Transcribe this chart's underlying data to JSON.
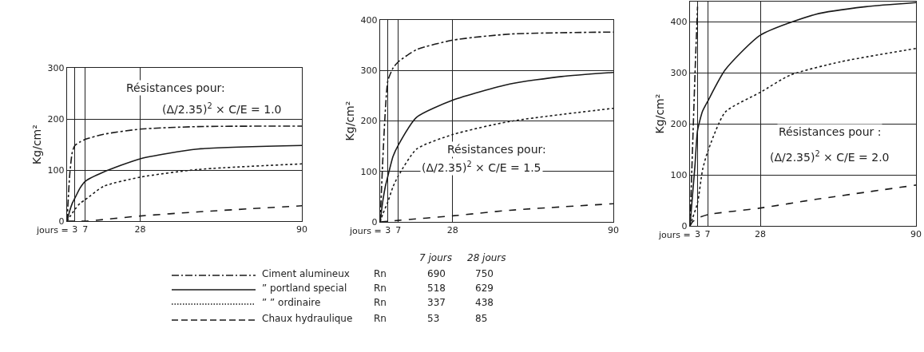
{
  "chart_data": [
    {
      "type": "line",
      "ylabel": "Kg/cm²",
      "xlabel": "jours =",
      "xlim": [
        0,
        90
      ],
      "xticks": [
        3,
        7,
        28,
        90
      ],
      "ylim": [
        0,
        300
      ],
      "yticks": [
        0,
        100,
        200,
        300
      ],
      "grid": true,
      "annotations": [
        "Résistances pour:",
        "(Δ/2.35)$^{2}$ × C/E = 1.0"
      ],
      "series": [
        {
          "color": "#1a1a1a",
          "line_style": "dashdot",
          "x": [
            0,
            1,
            2,
            3,
            5,
            7,
            14,
            28,
            50,
            90
          ],
          "values": [
            0,
            90,
            135,
            148,
            155,
            160,
            170,
            180,
            185,
            186
          ]
        },
        {
          "color": "#1a1a1a",
          "line_style": "solid",
          "x": [
            0,
            1,
            2,
            3,
            5,
            7,
            14,
            28,
            50,
            90
          ],
          "values": [
            0,
            20,
            35,
            45,
            65,
            78,
            96,
            122,
            141,
            148
          ]
        },
        {
          "color": "#1a1a1a",
          "line_style": "dotted",
          "x": [
            0,
            1,
            3,
            5,
            7,
            14,
            28,
            50,
            90
          ],
          "values": [
            0,
            8,
            23,
            35,
            42,
            68,
            86,
            101,
            112
          ]
        },
        {
          "color": "#1a1a1a",
          "line_style": "dashed",
          "x": [
            0,
            7,
            28,
            50,
            90
          ],
          "values": [
            0,
            0,
            10,
            18,
            30
          ]
        }
      ]
    },
    {
      "type": "line",
      "ylabel": "Kg/cm²",
      "xlabel": "jours =",
      "xlim": [
        0,
        90
      ],
      "xticks": [
        3,
        7,
        28,
        90
      ],
      "ylim": [
        0,
        400
      ],
      "yticks": [
        0,
        100,
        200,
        300,
        400
      ],
      "grid": true,
      "annotations": [
        "Résistances pour:",
        "(Δ/2.35)$^{2}$ × C/E = 1.5"
      ],
      "series": [
        {
          "color": "#1a1a1a",
          "line_style": "dashdot",
          "x": [
            0,
            1,
            2,
            3,
            5,
            7,
            14,
            28,
            50,
            90
          ],
          "values": [
            0,
            120,
            220,
            280,
            305,
            317,
            341,
            360,
            372,
            376
          ]
        },
        {
          "color": "#1a1a1a",
          "line_style": "solid",
          "x": [
            0,
            1,
            2,
            3,
            5,
            7,
            14,
            28,
            50,
            70,
            90
          ],
          "values": [
            0,
            40,
            70,
            91,
            130,
            152,
            207,
            241,
            273,
            288,
            296
          ]
        },
        {
          "color": "#1a1a1a",
          "line_style": "dotted",
          "x": [
            0,
            1,
            3,
            5,
            7,
            14,
            28,
            50,
            90
          ],
          "values": [
            0,
            15,
            40,
            70,
            91,
            144,
            173,
            199,
            225
          ]
        },
        {
          "color": "#1a1a1a",
          "line_style": "dashed",
          "x": [
            0,
            7,
            28,
            50,
            90
          ],
          "values": [
            0,
            3,
            12,
            23,
            36
          ]
        }
      ]
    },
    {
      "type": "line",
      "ylabel": "Kg/cm²",
      "xlabel": "jours =",
      "xlim": [
        0,
        90
      ],
      "xticks": [
        3,
        7,
        28,
        90
      ],
      "ylim": [
        0,
        440
      ],
      "yticks": [
        0,
        100,
        200,
        300,
        400
      ],
      "grid": true,
      "annotations": [
        "Résistances pour :",
        "(Δ/2.35)$^{2}$ × C/E = 2.0"
      ],
      "series": [
        {
          "color": "#1a1a1a",
          "line_style": "dashdot",
          "x": [
            0,
            1,
            2,
            3
          ],
          "values": [
            0,
            150,
            300,
            430
          ]
        },
        {
          "color": "#1a1a1a",
          "line_style": "solid",
          "x": [
            0,
            1,
            2,
            3,
            5,
            7,
            14,
            28,
            50,
            70,
            90
          ],
          "values": [
            0,
            60,
            120,
            187,
            225,
            244,
            306,
            374,
            415,
            430,
            438
          ]
        },
        {
          "color": "#1a1a1a",
          "line_style": "dotted",
          "x": [
            0,
            1,
            3,
            5,
            7,
            14,
            28,
            40,
            60,
            90
          ],
          "values": [
            0,
            15,
            45,
            110,
            145,
            223,
            262,
            296,
            322,
            348
          ]
        },
        {
          "color": "#1a1a1a",
          "line_style": "dashed",
          "x": [
            0,
            1,
            3,
            7,
            28,
            50,
            90
          ],
          "values": [
            0,
            8,
            15,
            22,
            35,
            52,
            80
          ]
        }
      ]
    },
    {
      "type": "other",
      "categories": [
        "Ciment alumineux",
        "” portland special",
        "” ” ordinaire",
        "Chaux hydraulique"
      ],
      "annotations": [
        "Rn",
        "Rn",
        "Rn",
        "Rn"
      ],
      "data_labels": true,
      "series": [
        {
          "name": "7 jours",
          "values": [
            690,
            518,
            337,
            53
          ]
        },
        {
          "name": "28 jours",
          "values": [
            750,
            629,
            438,
            85
          ]
        }
      ]
    }
  ]
}
